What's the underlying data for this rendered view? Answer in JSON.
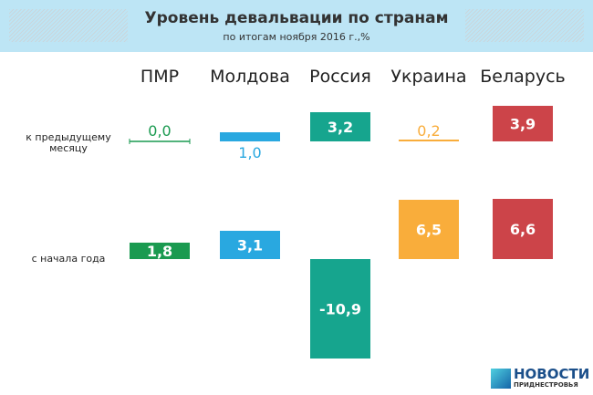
{
  "header": {
    "title": "Уровень девальвации по странам",
    "subtitle": "по итогам ноября 2016 г.,%"
  },
  "logo": {
    "line1": "НОВОСТИ",
    "line2": "ПРИДНЕСТРОВЬЯ"
  },
  "chart_data": {
    "type": "bar",
    "title": "Уровень девальвации по странам",
    "subtitle": "по итогам ноября 2016 г.,%",
    "categories": [
      "ПМР",
      "Молдова",
      "Россия",
      "Украина",
      "Беларусь"
    ],
    "colors": [
      "#1a9a50",
      "#29a8e0",
      "#16a58e",
      "#f9ad3b",
      "#cc4449"
    ],
    "series": [
      {
        "name": "к предыдущему месяцу",
        "values": [
          0.0,
          1.0,
          3.2,
          0.2,
          3.9
        ],
        "labels": [
          "0,0",
          "1,0",
          "3,2",
          "0,2",
          "3,9"
        ]
      },
      {
        "name": "с начала года",
        "values": [
          1.8,
          3.1,
          -10.9,
          6.5,
          6.6
        ],
        "labels": [
          "1,8",
          "3,1",
          "-10,9",
          "6,5",
          "6,6"
        ]
      }
    ]
  }
}
